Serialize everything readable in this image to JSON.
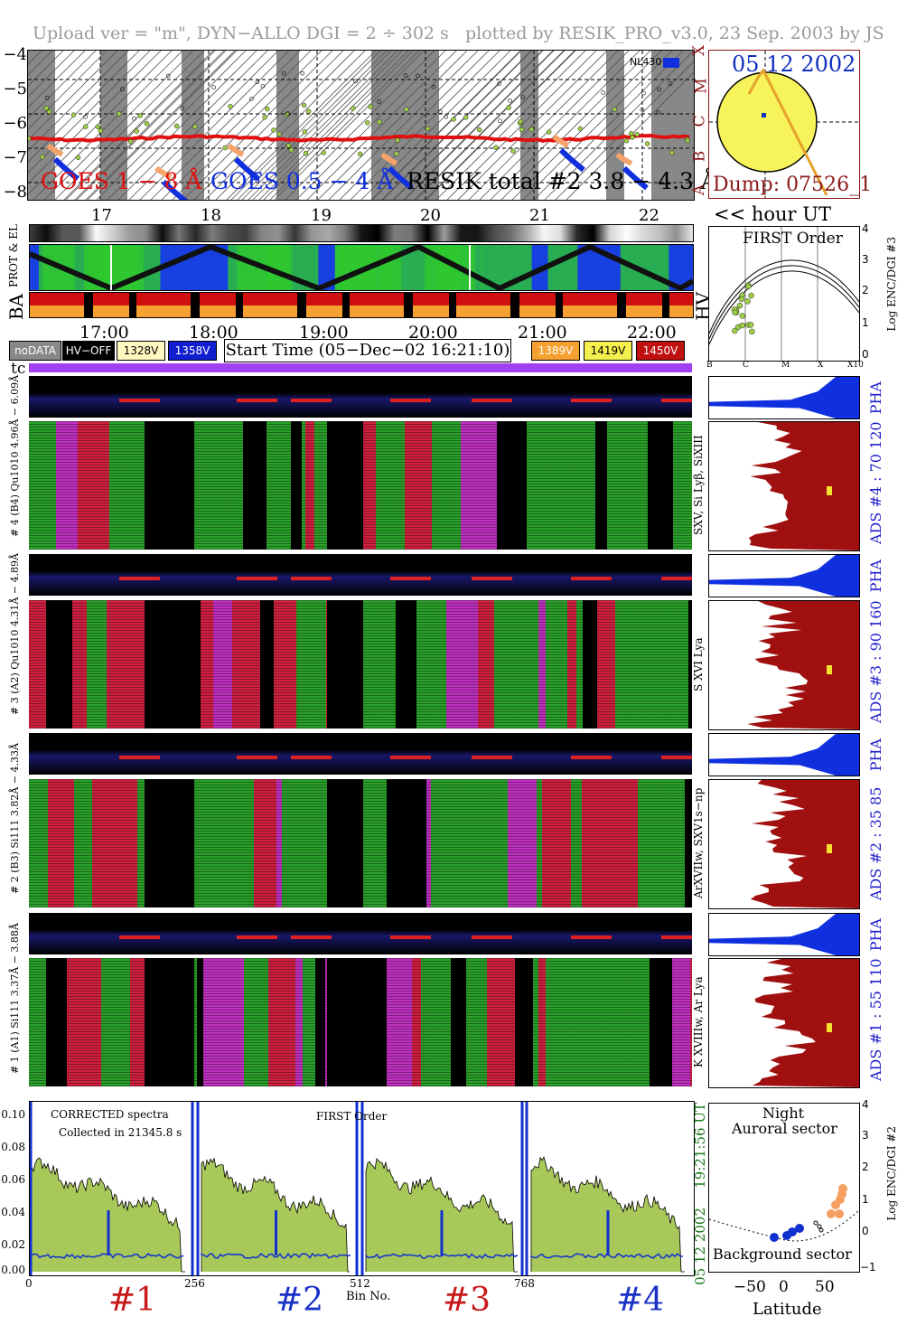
{
  "header": {
    "upload": "Upload ver = \"m\", DYN−ALLO DGI =   2 ÷ 302 s",
    "plotted": "plotted by RESIK_PRO_v3.0, 23 Sep. 2003 by JS"
  },
  "goes_panel": {
    "y_ticks": [
      "−4",
      "−5",
      "−6",
      "−7",
      "−8"
    ],
    "class_letters": [
      "X",
      "M",
      "C",
      "B",
      "A"
    ],
    "label_goes18": "GOES 1 − 8 Å",
    "label_goes054": "GOES 0.5 − 4 Å",
    "label_resik": "RESIK total #2  3.8 − 4.3 Å",
    "nl_label": "NL430",
    "colors": {
      "goes18": "#e01010",
      "goes054": "#1030e0",
      "resik": "#000000",
      "fit": "#9fcd4a",
      "peach": "#f5a36a"
    }
  },
  "sun_panel": {
    "date": "05 12 2002",
    "dump": "Dump: 07526_1",
    "colors": {
      "disk": "#f7f35b",
      "track": "#e6a12b",
      "frame": "#8b1a1a",
      "text_date": "#1030c0"
    }
  },
  "days": [
    "17",
    "18",
    "19",
    "20",
    "21",
    "22"
  ],
  "hour_ut_label": "<< hour UT",
  "hours": [
    "17:00",
    "18:00",
    "19:00",
    "20:00",
    "21:00",
    "22:00"
  ],
  "side_labels": {
    "prot_el": "PROT & EL",
    "ba": "BA",
    "hv": "HV",
    "tc": "tc"
  },
  "legend": {
    "nodata": "noDATA",
    "hvoff": "HV−OFF",
    "v1328": "1328V",
    "v1358": "1358V",
    "start_time": "Start Time (05−Dec−02 16:21:10)",
    "v1389": "1389V",
    "v1419": "1419V",
    "v1450": "1450V",
    "colors": {
      "nodata": "#888888",
      "hvoff": "#000000",
      "v1328": "#fff8c0",
      "v1358": "#1020d0",
      "v1389": "#f5a030",
      "v1419": "#f5f050",
      "v1450": "#c01010"
    }
  },
  "first_order_panel": {
    "title": "FIRST Order",
    "y_ticks": [
      "4",
      "3",
      "2",
      "1",
      "0"
    ],
    "x_ticks": [
      "B",
      "C",
      "M",
      "X",
      "X10"
    ],
    "ylabel": "Log ENC/DGI #3"
  },
  "channels": [
    {
      "pha_label": "6.09Å",
      "spec_label": "# 4 (B4) Qu1010 4.96Å − 6.09Å",
      "lines": "SXV, Si Lyβ, SiXIII",
      "ads": "ADS #4 :   70 120",
      "pha": "PHA"
    },
    {
      "pha_label": "4.89Å",
      "spec_label": "# 3 (A2) Qu1010 4.31Å − 4.89Å",
      "lines": "S XVI Lya",
      "ads": "ADS #3 :   90 160",
      "pha": "PHA"
    },
    {
      "pha_label": "4.33Å",
      "spec_label": "# 2 (B3) Si111  3.82Å − 4.33Å",
      "lines": "ArXVIIw, SXV1s−np",
      "ads": "ADS #2 :   35  85",
      "pha": "PHA"
    },
    {
      "pha_label": "3.88Å",
      "spec_label": "# 1 (A1) Si111  3.37Å − 3.88Å",
      "lines": "K XVIIIw, Ar Lya",
      "ads": "ADS #1 :   55 110",
      "pha": "PHA"
    }
  ],
  "spectra_panel": {
    "y_ticks": [
      "0.10",
      "0.08",
      "0.06",
      "0.04",
      "0.02",
      "0.00"
    ],
    "corrected": "CORRECTED spectra",
    "collected": "Collected in 21345.8 s",
    "first_order": "FIRST Order",
    "x_ticks": [
      "0",
      "256",
      "512",
      "768"
    ],
    "xlabel": "Bin No.",
    "date_vertical": "05 12 2002",
    "time_vertical": "19:21:56 UT",
    "channel_numbers": [
      "#1",
      "#2",
      "#3",
      "#4"
    ],
    "colors": {
      "fill": "#a8c85a",
      "line": "#000000",
      "blue": "#1030d0",
      "num_red": "#c81818",
      "num_blue": "#1a30c8",
      "date_green": "#1a7a1a",
      "time_green": "#1a7a1a"
    }
  },
  "latitude_panel": {
    "title1": "Night",
    "title2": "Auroral sector",
    "background": "Background sector",
    "x_ticks": [
      "−50",
      "0",
      "50"
    ],
    "xlabel": "Latitude",
    "y_ticks": [
      "4",
      "3",
      "2",
      "1",
      "0",
      "−1"
    ],
    "ylabel": "Log ENC/DGI #2"
  }
}
